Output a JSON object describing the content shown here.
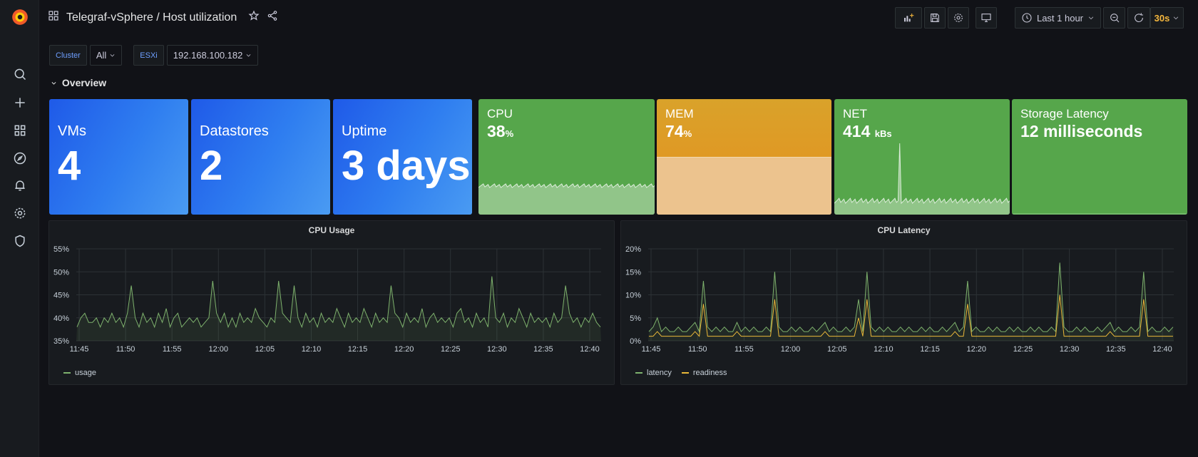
{
  "header": {
    "title": "Telegraf-vSphere / Host utilization",
    "time_range": "Last 1 hour",
    "refresh": "30s"
  },
  "variables": [
    {
      "label": "Cluster",
      "value": "All"
    },
    {
      "label": "ESXi",
      "value": "192.168.100.182"
    }
  ],
  "row": {
    "title": "Overview"
  },
  "stats": {
    "vms": {
      "label": "VMs",
      "value": "4"
    },
    "datastores": {
      "label": "Datastores",
      "value": "2"
    },
    "uptime": {
      "label": "Uptime",
      "value": "3 days"
    },
    "cpu": {
      "label": "CPU",
      "value": "38",
      "unit": "%"
    },
    "mem": {
      "label": "MEM",
      "value": "74",
      "unit": "%",
      "fill_fraction": 0.5
    },
    "net": {
      "label": "NET",
      "value": "414",
      "unit": "kBs"
    },
    "storage": {
      "label": "Storage Latency",
      "value": "12 milliseconds"
    }
  },
  "colors": {
    "blue": "#2f7ef0",
    "green": "#56a64b",
    "orange": "#e0982a",
    "usage_line": "#7eb26d",
    "readiness_line": "#eab839"
  },
  "chart_data": [
    {
      "type": "line",
      "title": "CPU Usage",
      "x_ticks": [
        "11:45",
        "11:50",
        "11:55",
        "12:00",
        "12:05",
        "12:10",
        "12:15",
        "12:20",
        "12:25",
        "12:30",
        "12:35",
        "12:40"
      ],
      "y_ticks": [
        "35%",
        "40%",
        "45%",
        "50%",
        "55%"
      ],
      "ylim": [
        35,
        55
      ],
      "series": [
        {
          "name": "usage",
          "color": "#7eb26d",
          "values": [
            38,
            40,
            41,
            39,
            39,
            40,
            38,
            40,
            39,
            41,
            39,
            40,
            38,
            41,
            47,
            40,
            38,
            41,
            39,
            40,
            38,
            41,
            39,
            42,
            38,
            40,
            41,
            38,
            39,
            40,
            39,
            40,
            38,
            39,
            40,
            48,
            41,
            39,
            41,
            38,
            40,
            38,
            41,
            39,
            40,
            39,
            42,
            40,
            39,
            38,
            40,
            39,
            48,
            41,
            40,
            39,
            47,
            40,
            38,
            41,
            39,
            40,
            38,
            41,
            39,
            40,
            39,
            42,
            40,
            38,
            41,
            39,
            40,
            39,
            42,
            40,
            38,
            41,
            39,
            40,
            39,
            47,
            41,
            40,
            38,
            41,
            39,
            40,
            39,
            42,
            38,
            40,
            41,
            39,
            40,
            39,
            40,
            38,
            41,
            42,
            39,
            40,
            38,
            41,
            39,
            40,
            38,
            49,
            40,
            39,
            41,
            38,
            40,
            39,
            42,
            40,
            38,
            41,
            39,
            40,
            39,
            40,
            38,
            41,
            39,
            40,
            47,
            41,
            39,
            40,
            38,
            40,
            39,
            41,
            39,
            38
          ]
        }
      ]
    },
    {
      "type": "line",
      "title": "CPU Latency",
      "x_ticks": [
        "11:45",
        "11:50",
        "11:55",
        "12:00",
        "12:05",
        "12:10",
        "12:15",
        "12:20",
        "12:25",
        "12:30",
        "12:35",
        "12:40"
      ],
      "y_ticks": [
        "0%",
        "5%",
        "10%",
        "15%",
        "20%"
      ],
      "ylim": [
        0,
        20
      ],
      "series": [
        {
          "name": "latency",
          "color": "#7eb26d",
          "values": [
            2,
            3,
            5,
            2,
            3,
            2,
            2,
            3,
            2,
            2,
            3,
            4,
            2,
            13,
            3,
            2,
            3,
            2,
            3,
            2,
            2,
            4,
            2,
            3,
            2,
            3,
            2,
            2,
            3,
            2,
            15,
            3,
            2,
            2,
            3,
            2,
            3,
            2,
            2,
            3,
            2,
            3,
            4,
            2,
            3,
            2,
            2,
            3,
            2,
            3,
            9,
            2,
            15,
            3,
            2,
            3,
            2,
            3,
            2,
            2,
            3,
            2,
            3,
            2,
            2,
            3,
            2,
            3,
            2,
            2,
            3,
            2,
            3,
            4,
            2,
            3,
            13,
            2,
            3,
            2,
            2,
            3,
            2,
            3,
            2,
            2,
            3,
            2,
            3,
            2,
            2,
            3,
            2,
            3,
            2,
            2,
            3,
            2,
            17,
            3,
            2,
            2,
            3,
            2,
            3,
            2,
            2,
            3,
            2,
            3,
            4,
            2,
            3,
            2,
            2,
            3,
            2,
            3,
            15,
            2,
            3,
            2,
            2,
            3,
            2,
            3
          ]
        },
        {
          "name": "readiness",
          "color": "#eab839",
          "values": [
            1,
            1,
            2,
            1,
            1,
            1,
            1,
            1,
            1,
            1,
            1,
            2,
            1,
            8,
            1,
            1,
            1,
            1,
            1,
            1,
            1,
            2,
            1,
            1,
            1,
            1,
            1,
            1,
            1,
            1,
            9,
            1,
            1,
            1,
            1,
            1,
            1,
            1,
            1,
            1,
            1,
            1,
            2,
            1,
            1,
            1,
            1,
            1,
            1,
            1,
            5,
            1,
            9,
            1,
            1,
            1,
            1,
            1,
            1,
            1,
            1,
            1,
            1,
            1,
            1,
            1,
            1,
            1,
            1,
            1,
            1,
            1,
            1,
            2,
            1,
            1,
            8,
            1,
            1,
            1,
            1,
            1,
            1,
            1,
            1,
            1,
            1,
            1,
            1,
            1,
            1,
            1,
            1,
            1,
            1,
            1,
            1,
            1,
            10,
            1,
            1,
            1,
            1,
            1,
            1,
            1,
            1,
            1,
            1,
            1,
            2,
            1,
            1,
            1,
            1,
            1,
            1,
            1,
            9,
            1,
            1,
            1,
            1,
            1,
            1,
            1
          ]
        }
      ]
    }
  ]
}
